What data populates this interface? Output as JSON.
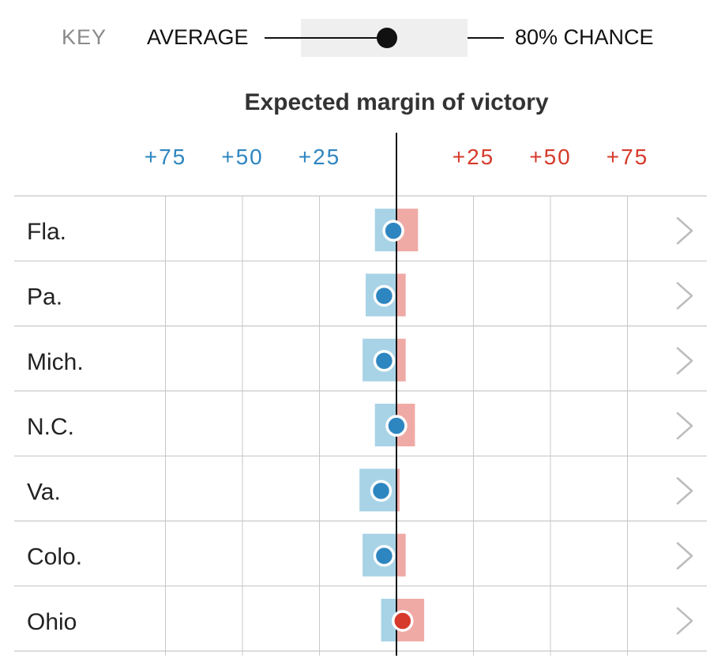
{
  "key": {
    "title": "KEY",
    "average_label": "AVERAGE",
    "chance_label": "80% CHANCE"
  },
  "colors": {
    "dem": "#2e86c1",
    "rep": "#d63a2b",
    "dem_range": "#a8d3e6",
    "rep_range": "#efaaa5",
    "grid": "#c8c8c8",
    "chevron": "#bdbdbd"
  },
  "chart_data": {
    "type": "range-dot",
    "title": "Expected margin of victory",
    "xlim": [
      -100,
      100
    ],
    "ticks": [
      {
        "value": -75,
        "label": "+75",
        "party": "dem"
      },
      {
        "value": -50,
        "label": "+50",
        "party": "dem"
      },
      {
        "value": -25,
        "label": "+25",
        "party": "dem"
      },
      {
        "value": 25,
        "label": "+25",
        "party": "rep"
      },
      {
        "value": 50,
        "label": "+50",
        "party": "rep"
      },
      {
        "value": 75,
        "label": "+75",
        "party": "rep"
      }
    ],
    "series": [
      {
        "state": "Fla.",
        "average": -1,
        "low": -7,
        "high": 7
      },
      {
        "state": "Pa.",
        "average": -4,
        "low": -10,
        "high": 3
      },
      {
        "state": "Mich.",
        "average": -4,
        "low": -11,
        "high": 3
      },
      {
        "state": "N.C.",
        "average": 0,
        "low": -7,
        "high": 6
      },
      {
        "state": "Va.",
        "average": -5,
        "low": -12,
        "high": 1
      },
      {
        "state": "Colo.",
        "average": -4,
        "low": -11,
        "high": 3
      },
      {
        "state": "Ohio",
        "average": 2,
        "low": -5,
        "high": 9
      }
    ]
  }
}
